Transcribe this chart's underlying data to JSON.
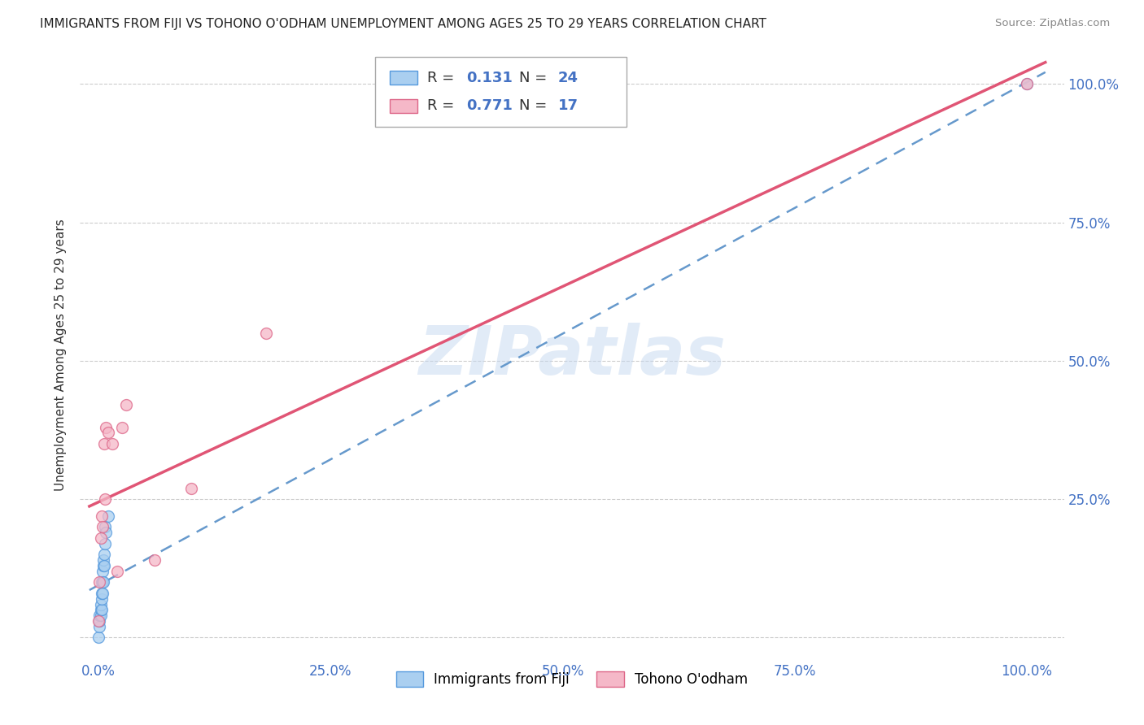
{
  "title": "IMMIGRANTS FROM FIJI VS TOHONO O'ODHAM UNEMPLOYMENT AMONG AGES 25 TO 29 YEARS CORRELATION CHART",
  "source": "Source: ZipAtlas.com",
  "ylabel": "Unemployment Among Ages 25 to 29 years",
  "r_fiji": 0.131,
  "n_fiji": 24,
  "r_tohono": 0.771,
  "n_tohono": 17,
  "fiji_color": "#aacff0",
  "fiji_edge_color": "#5599dd",
  "fiji_line_color": "#6699cc",
  "tohono_color": "#f5b8c8",
  "tohono_edge_color": "#dd6688",
  "tohono_line_color": "#e05575",
  "background_color": "#ffffff",
  "watermark": "ZIPatlas",
  "fiji_x": [
    0.0,
    0.001,
    0.001,
    0.001,
    0.002,
    0.002,
    0.002,
    0.003,
    0.003,
    0.003,
    0.003,
    0.004,
    0.004,
    0.004,
    0.005,
    0.005,
    0.005,
    0.006,
    0.006,
    0.007,
    0.007,
    0.008,
    0.01,
    1.0
  ],
  "fiji_y": [
    0.0,
    0.02,
    0.03,
    0.04,
    0.04,
    0.05,
    0.06,
    0.05,
    0.07,
    0.08,
    0.1,
    0.08,
    0.1,
    0.12,
    0.1,
    0.13,
    0.14,
    0.13,
    0.15,
    0.17,
    0.2,
    0.19,
    0.22,
    1.0
  ],
  "tohono_x": [
    0.0,
    0.001,
    0.002,
    0.003,
    0.004,
    0.006,
    0.007,
    0.008,
    0.01,
    0.015,
    0.02,
    0.025,
    0.03,
    0.06,
    0.1,
    0.18,
    1.0
  ],
  "tohono_y": [
    0.03,
    0.1,
    0.18,
    0.22,
    0.2,
    0.35,
    0.25,
    0.38,
    0.37,
    0.35,
    0.12,
    0.38,
    0.42,
    0.14,
    0.27,
    0.55,
    1.0
  ],
  "xaxis_ticks": [
    0.0,
    0.25,
    0.5,
    0.75,
    1.0
  ],
  "xaxis_labels": [
    "0.0%",
    "25.0%",
    "50.0%",
    "75.0%",
    "100.0%"
  ],
  "yaxis_ticks": [
    0.0,
    0.25,
    0.5,
    0.75,
    1.0
  ],
  "right_axis_labels": [
    "",
    "25.0%",
    "50.0%",
    "75.0%",
    "100.0%"
  ],
  "grid_color": "#cccccc",
  "axis_label_color": "#4472c4",
  "title_fontsize": 11,
  "legend_fontsize": 13,
  "tick_fontsize": 12,
  "marker_size": 100
}
